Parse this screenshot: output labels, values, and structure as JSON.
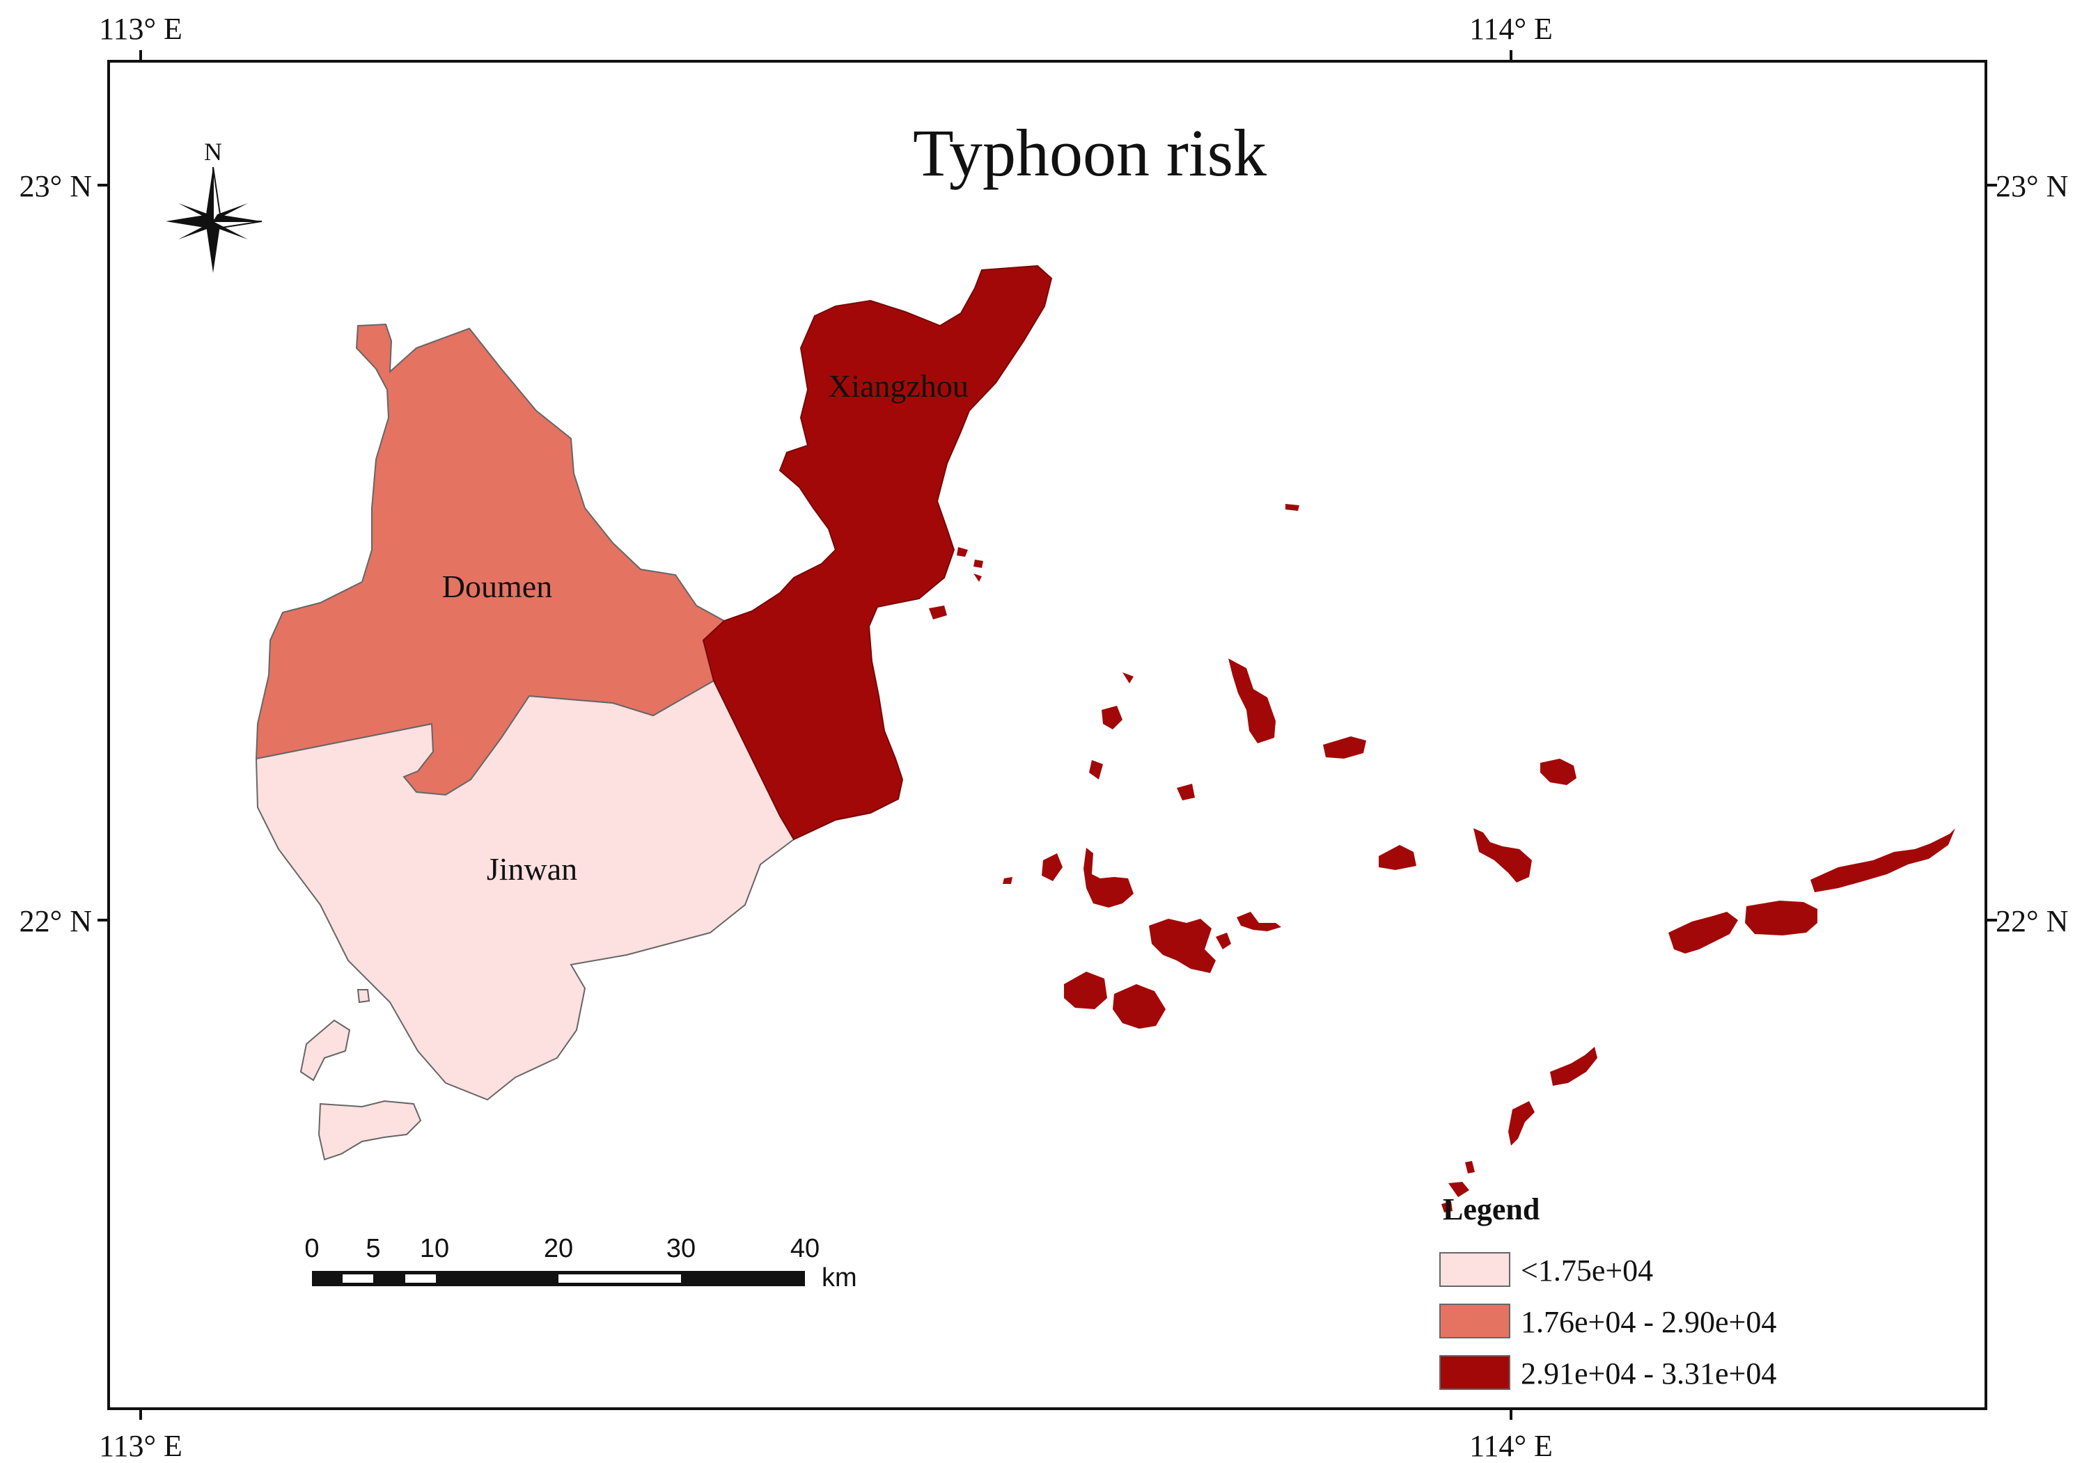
{
  "title": "Typhoon risk",
  "coordinates": {
    "top_ticks": [
      "113° E",
      "114° E"
    ],
    "bottom_ticks": [
      "113° E",
      "114° E"
    ],
    "left_ticks": [
      "23° N",
      "22° N"
    ],
    "right_ticks": [
      "23° N",
      "22° N"
    ]
  },
  "north_arrow_label": "N",
  "districts": [
    {
      "name": "Doumen",
      "risk_class": "1.76e+04 - 2.90e+04"
    },
    {
      "name": "Jinwan",
      "risk_class": "<1.75e+04"
    },
    {
      "name": "Xiangzhou",
      "risk_class": "2.91e+04 - 3.31e+04"
    }
  ],
  "scale_bar": {
    "ticks": [
      "0",
      "5",
      "10",
      "20",
      "30",
      "40"
    ],
    "unit": "km"
  },
  "legend": {
    "title": "Legend",
    "items": [
      {
        "label": "<1.75e+04",
        "color": "#fde0e0"
      },
      {
        "label": "1.76e+04 - 2.90e+04",
        "color": "#e57362"
      },
      {
        "label": "2.91e+04 - 3.31e+04",
        "color": "#a30808"
      }
    ]
  }
}
